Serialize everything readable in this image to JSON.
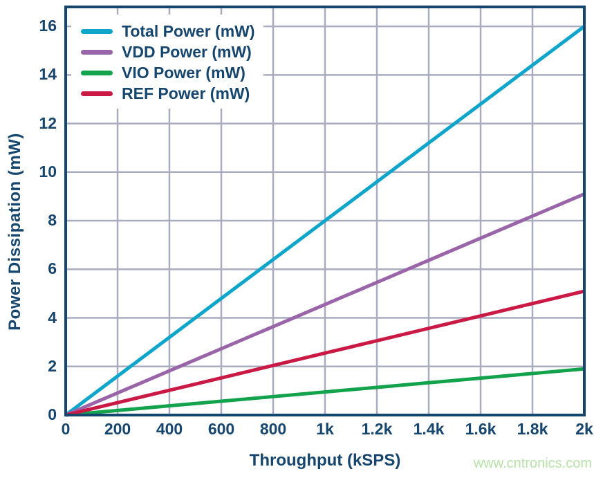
{
  "chart_data": {
    "type": "line",
    "title": "",
    "xlabel": "Throughput (kSPS)",
    "ylabel": "Power Dissipation (mW)",
    "xlim": [
      0,
      2000
    ],
    "ylim": [
      0,
      16.8
    ],
    "grid": true,
    "legend_position": "top-left",
    "x": [
      0,
      200,
      400,
      600,
      800,
      1000,
      1200,
      1400,
      1600,
      1800,
      2000
    ],
    "x_ticks": [
      {
        "value": 0,
        "label": "0"
      },
      {
        "value": 200,
        "label": "200"
      },
      {
        "value": 400,
        "label": "400"
      },
      {
        "value": 600,
        "label": "600"
      },
      {
        "value": 800,
        "label": "800"
      },
      {
        "value": 1000,
        "label": "1k"
      },
      {
        "value": 1200,
        "label": "1.2k"
      },
      {
        "value": 1400,
        "label": "1.4k"
      },
      {
        "value": 1600,
        "label": "1.6k"
      },
      {
        "value": 1800,
        "label": "1.8k"
      },
      {
        "value": 2000,
        "label": "2k"
      }
    ],
    "y_ticks": [
      {
        "value": 0,
        "label": "0"
      },
      {
        "value": 2,
        "label": "2"
      },
      {
        "value": 4,
        "label": "4"
      },
      {
        "value": 6,
        "label": "6"
      },
      {
        "value": 8,
        "label": "8"
      },
      {
        "value": 10,
        "label": "10"
      },
      {
        "value": 12,
        "label": "12"
      },
      {
        "value": 14,
        "label": "14"
      },
      {
        "value": 16,
        "label": "16"
      }
    ],
    "series": [
      {
        "id": "total",
        "name": "Total Power (mW)",
        "color": "#0da5c9",
        "values": [
          0,
          1.6,
          3.2,
          4.8,
          6.4,
          8.0,
          9.6,
          11.2,
          12.8,
          14.4,
          16.0
        ]
      },
      {
        "id": "vdd",
        "name": "VDD Power (mW)",
        "color": "#9a64a8",
        "values": [
          0,
          0.91,
          1.82,
          2.73,
          3.64,
          4.55,
          5.46,
          6.37,
          7.28,
          8.19,
          9.1
        ]
      },
      {
        "id": "vio",
        "name": "VIO Power (mW)",
        "color": "#13a34c",
        "values": [
          0,
          0.19,
          0.38,
          0.57,
          0.76,
          0.95,
          1.14,
          1.33,
          1.52,
          1.71,
          1.9
        ]
      },
      {
        "id": "ref",
        "name": "REF Power (mW)",
        "color": "#c91944",
        "values": [
          0,
          0.51,
          1.02,
          1.53,
          2.04,
          2.55,
          3.06,
          3.57,
          4.08,
          4.59,
          5.1
        ]
      }
    ]
  },
  "colors": {
    "text": "#16466d",
    "frame": "#16466d",
    "grid": "#a9abbf",
    "background": "#ffffff",
    "watermark": "#b7e2a8"
  },
  "watermark": {
    "text": "www.cntronics.com"
  }
}
